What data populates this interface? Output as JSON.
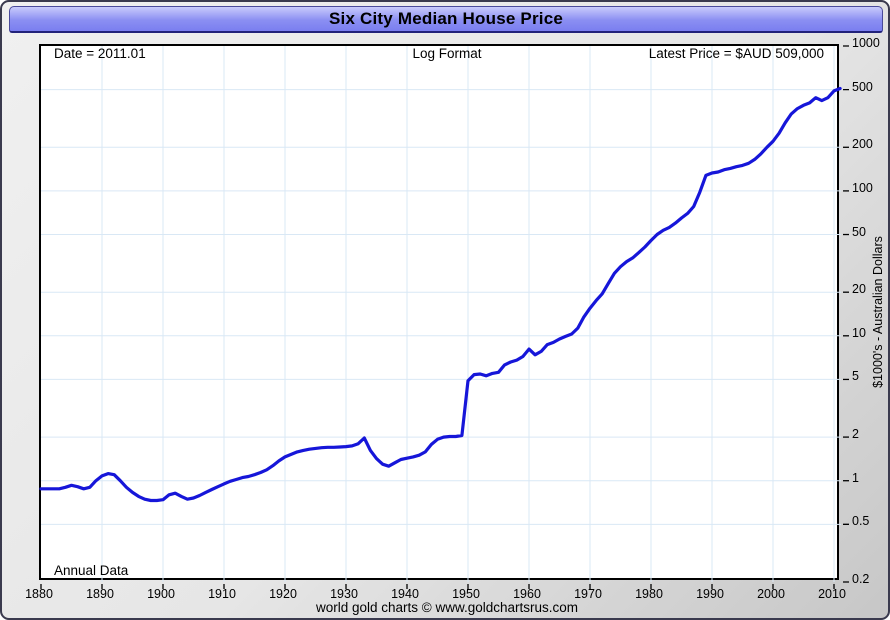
{
  "window": {
    "title": "Six City Median House Price"
  },
  "annotations": {
    "date_label": "Date = 2011.01",
    "format_label": "Log Format",
    "latest_price_label": "Latest Price = $AUD 509,000",
    "frequency_label": "Annual Data"
  },
  "footer": {
    "credit": "world gold charts © www.goldchartsrus.com"
  },
  "y_axis": {
    "title": "$1000's - Australian Dollars",
    "scale": "log",
    "range": [
      0.2,
      1000
    ],
    "tick_labels": [
      "1000",
      "500",
      "200",
      "100",
      "50",
      "20",
      "10",
      "5",
      "2",
      "1",
      "0.5",
      "0.2"
    ],
    "tick_values": [
      1000,
      500,
      200,
      100,
      50,
      20,
      10,
      5,
      2,
      1,
      0.5,
      0.2
    ]
  },
  "x_axis": {
    "range": [
      1880,
      2011
    ],
    "tick_values": [
      1880,
      1890,
      1900,
      1910,
      1920,
      1930,
      1940,
      1950,
      1960,
      1970,
      1980,
      1990,
      2000,
      2010
    ]
  },
  "colors": {
    "line": "#1616d9",
    "grid": "#d9e8f5",
    "plot_border": "#000000",
    "titlebar_top": "#c9cbfc",
    "titlebar_bottom": "#7a7ef0",
    "page_bg": "#e6e6e6"
  },
  "chart_data": {
    "type": "line",
    "title": "Six City Median House Price",
    "ylabel": "$1000's - Australian Dollars",
    "xlabel": "",
    "y_scale": "log",
    "ylim": [
      0.2,
      1000
    ],
    "xlim": [
      1880,
      2011
    ],
    "grid": "on",
    "frequency": "Annual Data",
    "latest": {
      "date": "2011.01",
      "value_thousands_aud": 509
    },
    "x": [
      1880,
      1881,
      1882,
      1883,
      1884,
      1885,
      1886,
      1887,
      1888,
      1889,
      1890,
      1891,
      1892,
      1893,
      1894,
      1895,
      1896,
      1897,
      1898,
      1899,
      1900,
      1901,
      1902,
      1903,
      1904,
      1905,
      1906,
      1907,
      1908,
      1909,
      1910,
      1911,
      1912,
      1913,
      1914,
      1915,
      1916,
      1917,
      1918,
      1919,
      1920,
      1921,
      1922,
      1923,
      1924,
      1925,
      1926,
      1927,
      1928,
      1929,
      1930,
      1931,
      1932,
      1933,
      1934,
      1935,
      1936,
      1937,
      1938,
      1939,
      1940,
      1941,
      1942,
      1943,
      1944,
      1945,
      1946,
      1947,
      1948,
      1949,
      1950,
      1951,
      1952,
      1953,
      1954,
      1955,
      1956,
      1957,
      1958,
      1959,
      1960,
      1961,
      1962,
      1963,
      1964,
      1965,
      1966,
      1967,
      1968,
      1969,
      1970,
      1971,
      1972,
      1973,
      1974,
      1975,
      1976,
      1977,
      1978,
      1979,
      1980,
      1981,
      1982,
      1983,
      1984,
      1985,
      1986,
      1987,
      1988,
      1989,
      1990,
      1991,
      1992,
      1993,
      1994,
      1995,
      1996,
      1997,
      1998,
      1999,
      2000,
      2001,
      2002,
      2003,
      2004,
      2005,
      2006,
      2007,
      2008,
      2009,
      2010,
      2011
    ],
    "series": [
      {
        "name": "Six City Median House Price ($1000's AUD)",
        "values": [
          0.88,
          0.88,
          0.88,
          0.88,
          0.9,
          0.93,
          0.91,
          0.88,
          0.9,
          1.0,
          1.08,
          1.12,
          1.1,
          1.0,
          0.9,
          0.83,
          0.78,
          0.745,
          0.73,
          0.73,
          0.74,
          0.8,
          0.82,
          0.78,
          0.745,
          0.76,
          0.79,
          0.83,
          0.87,
          0.91,
          0.95,
          0.99,
          1.02,
          1.05,
          1.07,
          1.1,
          1.14,
          1.19,
          1.27,
          1.37,
          1.46,
          1.52,
          1.58,
          1.62,
          1.65,
          1.67,
          1.69,
          1.7,
          1.7,
          1.71,
          1.72,
          1.74,
          1.8,
          1.97,
          1.62,
          1.42,
          1.3,
          1.26,
          1.33,
          1.4,
          1.43,
          1.46,
          1.5,
          1.58,
          1.78,
          1.93,
          2.0,
          2.02,
          2.02,
          2.05,
          4.9,
          5.4,
          5.45,
          5.3,
          5.5,
          5.6,
          6.3,
          6.6,
          6.8,
          7.2,
          8.1,
          7.4,
          7.8,
          8.7,
          9.0,
          9.5,
          9.9,
          10.3,
          11.3,
          13.5,
          15.5,
          17.5,
          19.5,
          23.0,
          27.0,
          30.0,
          32.5,
          34.5,
          37.5,
          41.0,
          45.5,
          50.0,
          53.5,
          56.0,
          60.0,
          65.0,
          70.0,
          78.0,
          98.0,
          128,
          133,
          135,
          140,
          143,
          147,
          150,
          155,
          165,
          180,
          200,
          220,
          250,
          295,
          340,
          370,
          390,
          405,
          440,
          420,
          440,
          490,
          509
        ]
      }
    ]
  }
}
